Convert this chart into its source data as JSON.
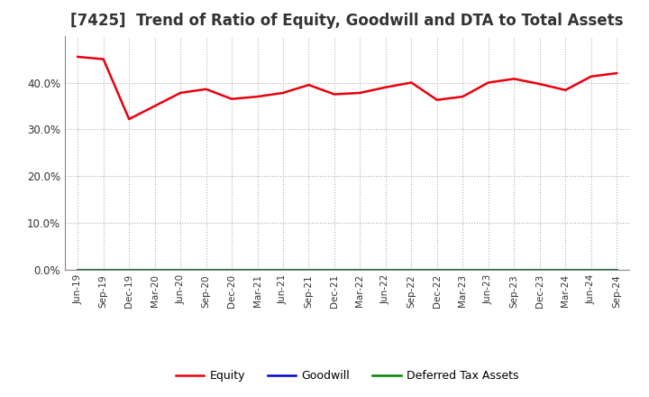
{
  "title": "[7425]  Trend of Ratio of Equity, Goodwill and DTA to Total Assets",
  "x_labels": [
    "Jun-19",
    "Sep-19",
    "Dec-19",
    "Mar-20",
    "Jun-20",
    "Sep-20",
    "Dec-20",
    "Mar-21",
    "Jun-21",
    "Sep-21",
    "Dec-21",
    "Mar-22",
    "Jun-22",
    "Sep-22",
    "Dec-22",
    "Mar-23",
    "Jun-23",
    "Sep-23",
    "Dec-23",
    "Mar-24",
    "Jun-24",
    "Sep-24"
  ],
  "equity": [
    0.455,
    0.45,
    0.322,
    0.35,
    0.378,
    0.386,
    0.365,
    0.37,
    0.378,
    0.395,
    0.375,
    0.378,
    0.39,
    0.4,
    0.363,
    0.37,
    0.4,
    0.408,
    0.397,
    0.384,
    0.413,
    0.42
  ],
  "goodwill": [
    0.0,
    0.0,
    0.0,
    0.0,
    0.0,
    0.0,
    0.0,
    0.0,
    0.0,
    0.0,
    0.0,
    0.0,
    0.0,
    0.0,
    0.0,
    0.0,
    0.0,
    0.0,
    0.0,
    0.0,
    0.0,
    0.0
  ],
  "dta": [
    0.0,
    0.0,
    0.0,
    0.0,
    0.0,
    0.0,
    0.0,
    0.0,
    0.0,
    0.0,
    0.0,
    0.0,
    0.0,
    0.0,
    0.0,
    0.0,
    0.0,
    0.0,
    0.0,
    0.0,
    0.0,
    0.0
  ],
  "equity_color": "#e8000d",
  "goodwill_color": "#0000cd",
  "dta_color": "#008000",
  "ylim": [
    0.0,
    0.5
  ],
  "yticks": [
    0.0,
    0.1,
    0.2,
    0.3,
    0.4
  ],
  "background_color": "#ffffff",
  "plot_background": "#ffffff",
  "grid_color": "#b0b0b0",
  "title_fontsize": 12,
  "title_color": "#333333",
  "legend_labels": [
    "Equity",
    "Goodwill",
    "Deferred Tax Assets"
  ]
}
